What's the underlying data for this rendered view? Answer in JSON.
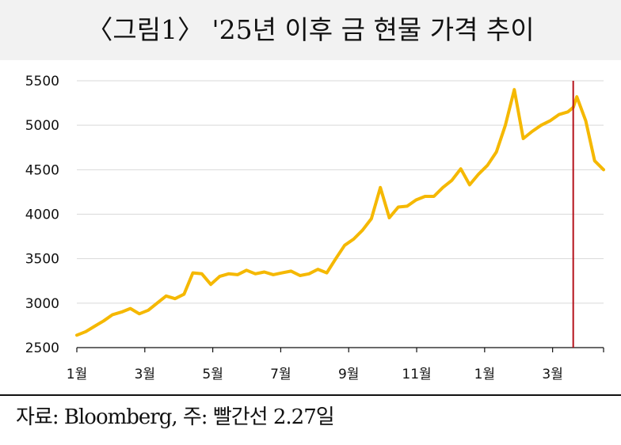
{
  "title": "〈그림1〉 '25년 이후 금 현물 가격 추이",
  "source": "자료: Bloomberg, 주: 빨간선 2.27일",
  "chart_data": {
    "type": "line",
    "ylim": [
      2500,
      5500
    ],
    "yticks": [
      2500,
      3000,
      3500,
      4000,
      4500,
      5000,
      5500
    ],
    "xticks": [
      "1월",
      "3월",
      "5월",
      "7월",
      "9월",
      "11월",
      "1월",
      "3월"
    ],
    "grid": "horizontal",
    "line_color": "#f5b800",
    "marker_color": "#b5121b",
    "marker_label": "2.27",
    "marker_position": 13.9,
    "series": [
      {
        "x": [
          0,
          0.25,
          0.5,
          0.75,
          1,
          1.25,
          1.5,
          1.75,
          2,
          2.25,
          2.5,
          2.75,
          3,
          3.25,
          3.5,
          3.75,
          4,
          4.25,
          4.5,
          4.75,
          5,
          5.25,
          5.5,
          5.75,
          6,
          6.25,
          6.5,
          6.75,
          7,
          7.25,
          7.5,
          7.75,
          8,
          8.25,
          8.5,
          8.75,
          9,
          9.25,
          9.5,
          9.75,
          10,
          10.25,
          10.5,
          10.75,
          11,
          11.25,
          11.5,
          11.75,
          12,
          12.25,
          12.5,
          12.75,
          13,
          13.25,
          13.5,
          13.75,
          13.9,
          14,
          14.25,
          14.5,
          14.75
        ],
        "values": [
          2640,
          2680,
          2740,
          2800,
          2870,
          2900,
          2940,
          2880,
          2920,
          3000,
          3080,
          3050,
          3100,
          3340,
          3330,
          3210,
          3300,
          3330,
          3320,
          3370,
          3330,
          3350,
          3320,
          3340,
          3360,
          3310,
          3330,
          3380,
          3340,
          3500,
          3650,
          3720,
          3820,
          3950,
          4300,
          3960,
          4080,
          4090,
          4160,
          4200,
          4200,
          4300,
          4380,
          4510,
          4330,
          4450,
          4550,
          4700,
          5000,
          5400,
          4850,
          4930,
          5000,
          5050,
          5120,
          5150,
          5200,
          5320,
          5050,
          4600,
          4500
        ]
      }
    ]
  }
}
